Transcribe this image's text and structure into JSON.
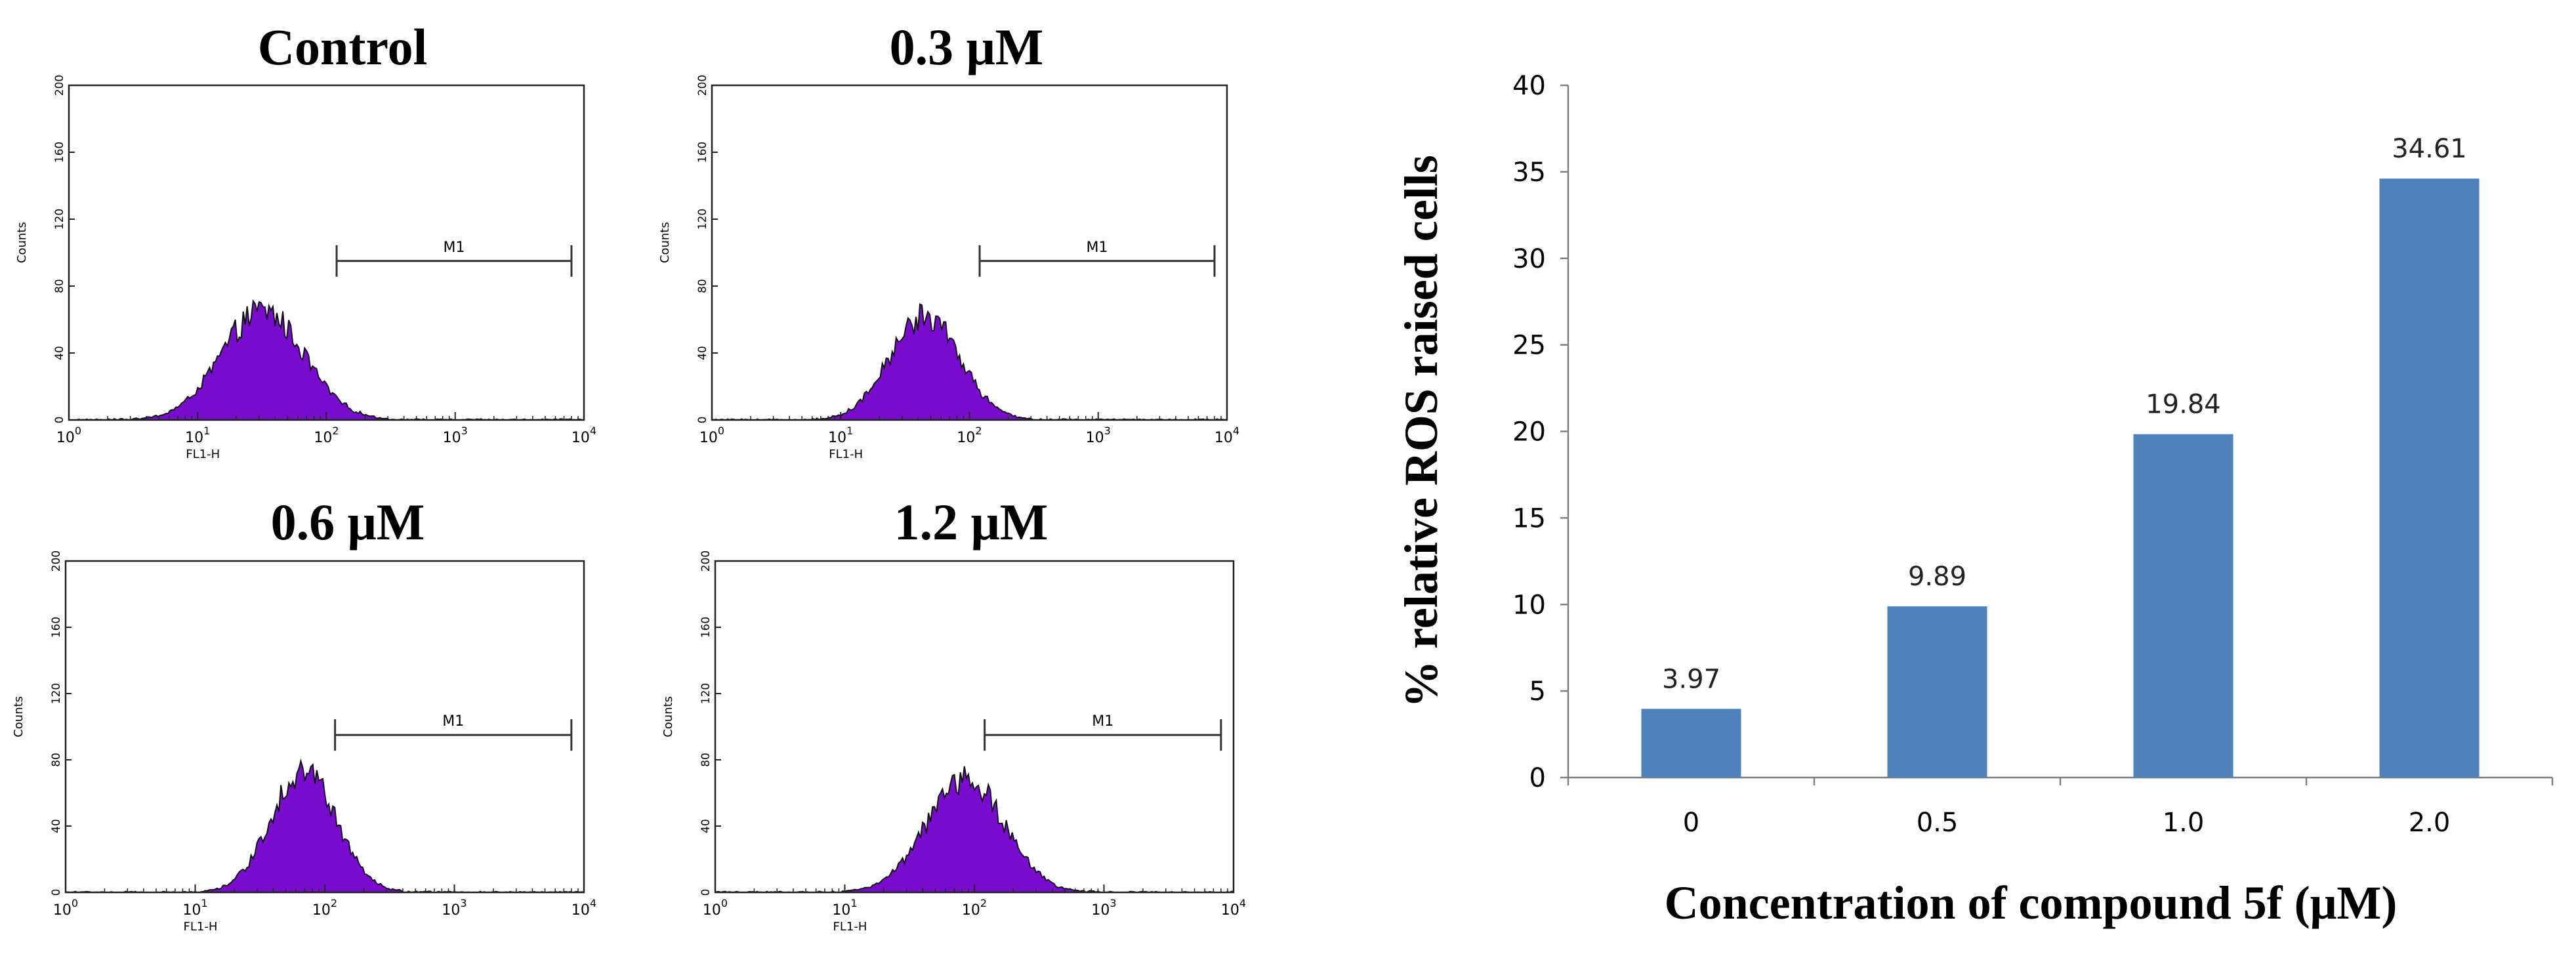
{
  "chart_data": [
    {
      "type": "histogram",
      "title": "Control",
      "xlabel": "FL1-H",
      "ylabel": "Counts",
      "xscale": "log",
      "xlim": [
        1,
        10000
      ],
      "x_ticks": [
        {
          "base": "10",
          "exp": "0",
          "value": 1
        },
        {
          "base": "10",
          "exp": "1",
          "value": 10
        },
        {
          "base": "10",
          "exp": "2",
          "value": 100
        },
        {
          "base": "10",
          "exp": "3",
          "value": 1000
        },
        {
          "base": "10",
          "exp": "4",
          "value": 10000
        }
      ],
      "ylim": [
        0,
        200
      ],
      "y_ticks": [
        "0",
        "40",
        "80",
        "120",
        "160",
        "200"
      ],
      "gate": {
        "label": "M1",
        "start": 120,
        "end": 8000,
        "y": 95
      },
      "peak": {
        "center": 32,
        "height": 65,
        "width_decades": 0.32
      },
      "color": "#7a0ccf"
    },
    {
      "type": "histogram",
      "title": "0.3 μM",
      "xlabel": "FL1-H",
      "ylabel": "Counts",
      "xscale": "log",
      "xlim": [
        1,
        10000
      ],
      "x_ticks": [
        {
          "base": "10",
          "exp": "0",
          "value": 1
        },
        {
          "base": "10",
          "exp": "1",
          "value": 10
        },
        {
          "base": "10",
          "exp": "2",
          "value": 100
        },
        {
          "base": "10",
          "exp": "3",
          "value": 1000
        },
        {
          "base": "10",
          "exp": "4",
          "value": 10000
        }
      ],
      "ylim": [
        0,
        200
      ],
      "y_ticks": [
        "0",
        "40",
        "80",
        "120",
        "160",
        "200"
      ],
      "gate": {
        "label": "M1",
        "start": 120,
        "end": 8000,
        "y": 95
      },
      "peak": {
        "center": 45,
        "height": 62,
        "width_decades": 0.27
      },
      "color": "#7a0ccf"
    },
    {
      "type": "histogram",
      "title": "0.6 μM",
      "xlabel": "FL1-H",
      "ylabel": "Counts",
      "xscale": "log",
      "xlim": [
        1,
        10000
      ],
      "x_ticks": [
        {
          "base": "10",
          "exp": "0",
          "value": 1
        },
        {
          "base": "10",
          "exp": "1",
          "value": 10
        },
        {
          "base": "10",
          "exp": "2",
          "value": 100
        },
        {
          "base": "10",
          "exp": "3",
          "value": 1000
        },
        {
          "base": "10",
          "exp": "4",
          "value": 10000
        }
      ],
      "ylim": [
        0,
        200
      ],
      "y_ticks": [
        "0",
        "40",
        "80",
        "120",
        "160",
        "200"
      ],
      "gate": {
        "label": "M1",
        "start": 120,
        "end": 8000,
        "y": 95
      },
      "peak": {
        "center": 68,
        "height": 74,
        "width_decades": 0.25
      },
      "color": "#7a0ccf"
    },
    {
      "type": "histogram",
      "title": "1.2 μM",
      "xlabel": "FL1-H",
      "ylabel": "Counts",
      "xscale": "log",
      "xlim": [
        1,
        10000
      ],
      "x_ticks": [
        {
          "base": "10",
          "exp": "0",
          "value": 1
        },
        {
          "base": "10",
          "exp": "1",
          "value": 10
        },
        {
          "base": "10",
          "exp": "2",
          "value": 100
        },
        {
          "base": "10",
          "exp": "3",
          "value": 1000
        },
        {
          "base": "10",
          "exp": "4",
          "value": 10000
        }
      ],
      "ylim": [
        0,
        200
      ],
      "y_ticks": [
        "0",
        "40",
        "80",
        "120",
        "160",
        "200"
      ],
      "gate": {
        "label": "M1",
        "start": 120,
        "end": 8000,
        "y": 95
      },
      "peak": {
        "center": 85,
        "height": 68,
        "width_decades": 0.3
      },
      "color": "#7a0ccf"
    },
    {
      "type": "bar",
      "categories": [
        "0",
        "0.5",
        "1.0",
        "2.0"
      ],
      "values": [
        3.97,
        9.89,
        19.84,
        34.61
      ],
      "value_labels": [
        "3.97",
        "9.89",
        "19.84",
        "34.61"
      ],
      "title": "",
      "xlabel": "Concentration of compound 5f (μM)",
      "ylabel": "% relative ROS raised cells",
      "ylim": [
        0,
        40
      ],
      "y_ticks": [
        "0",
        "5",
        "10",
        "15",
        "20",
        "25",
        "30",
        "35",
        "40"
      ],
      "grid": false,
      "color": "#4f81bd"
    }
  ]
}
